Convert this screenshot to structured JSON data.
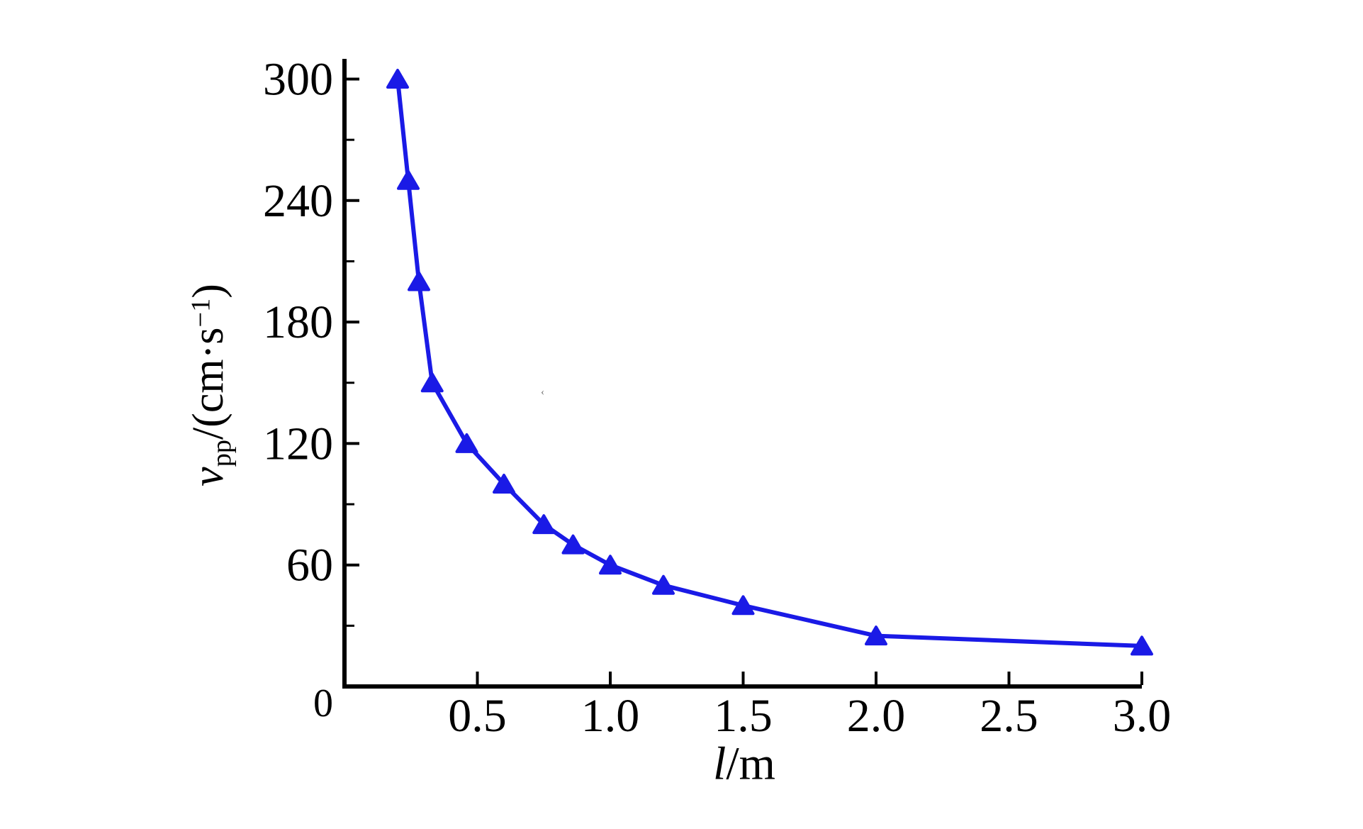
{
  "chart_data": {
    "type": "line",
    "title": "",
    "xlabel": "l/m",
    "ylabel": "v_pp/(cm·s⁻¹)",
    "xlim": [
      0,
      3.0
    ],
    "ylim": [
      0,
      310
    ],
    "x_ticks": [
      0.5,
      1.0,
      1.5,
      2.0,
      2.5,
      3.0
    ],
    "x_tick_labels": [
      "0.5",
      "1.0",
      "1.5",
      "2.0",
      "2.5",
      "3.0"
    ],
    "y_ticks": [
      0,
      60,
      120,
      180,
      240,
      300
    ],
    "y_tick_labels": [
      "0",
      "60",
      "120",
      "180",
      "240",
      "300"
    ],
    "y_minor_ticks": [
      30,
      90,
      150,
      210,
      270
    ],
    "grid": false,
    "legend": "none",
    "series": [
      {
        "name": "v_pp",
        "marker": "triangle-up",
        "color": "#1a1ae6",
        "x": [
          0.2,
          0.24,
          0.28,
          0.33,
          0.46,
          0.6,
          0.75,
          0.86,
          1.0,
          1.2,
          1.5,
          2.0,
          3.0
        ],
        "y": [
          300,
          250,
          200,
          150,
          120,
          100,
          80,
          70,
          60,
          50,
          40,
          25,
          20
        ]
      }
    ]
  },
  "labels": {
    "xlabel": {
      "symbol": "l",
      "unit": "/m"
    },
    "ylabel": {
      "symbol": "v",
      "subscript": "pp",
      "unit_open": "/(cm·s",
      "exponent": "−1",
      "unit_close": ")"
    }
  },
  "colors": {
    "line": "#1a1ae6",
    "axis": "#000000",
    "text": "#000000",
    "background": "#ffffff"
  },
  "stray_mark": "‹"
}
